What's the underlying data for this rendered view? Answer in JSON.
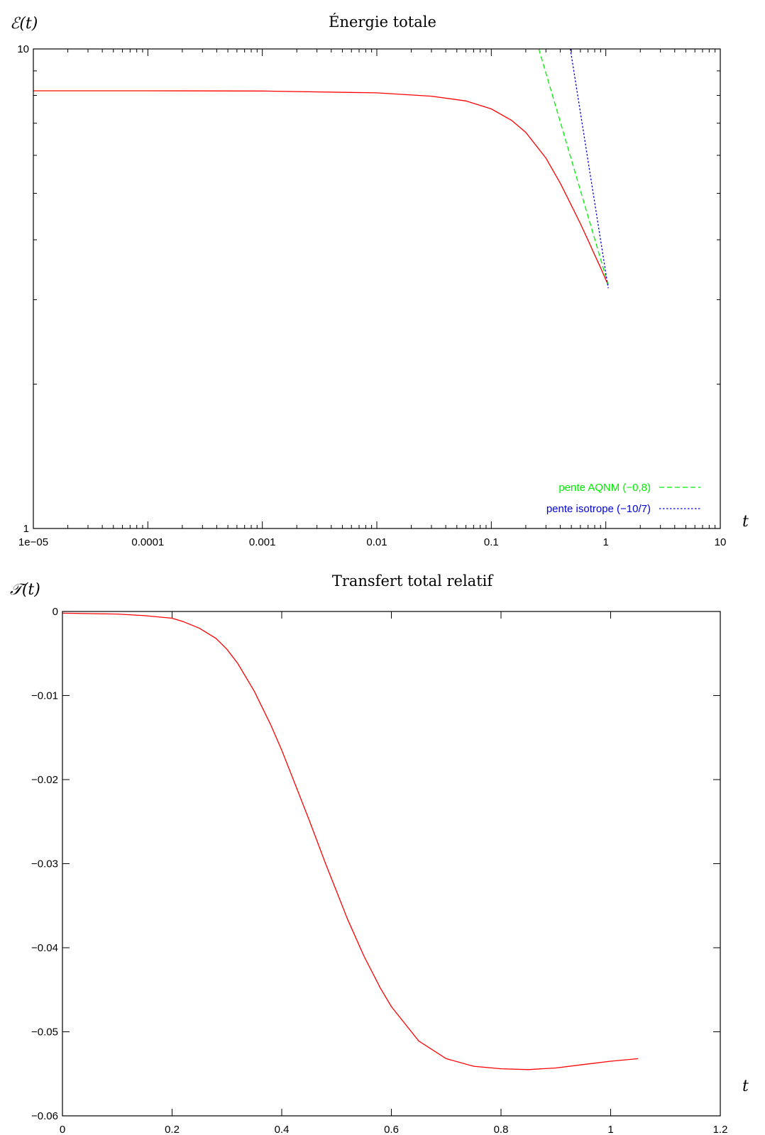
{
  "chart_data": [
    {
      "type": "line",
      "title": "Énergie totale",
      "ylabel": "ℰ(t)",
      "xlabel": "t",
      "xscale": "log",
      "yscale": "log",
      "xlim": [
        1e-05,
        10
      ],
      "ylim": [
        1,
        10
      ],
      "x_ticks": [
        1e-05,
        0.0001,
        0.001,
        0.01,
        0.1,
        1,
        10
      ],
      "x_tick_labels": [
        "1e−05",
        "0.0001",
        "0.001",
        "0.01",
        "0.1",
        "1",
        "10"
      ],
      "y_ticks": [
        1,
        10
      ],
      "y_tick_labels": [
        "1",
        "10"
      ],
      "grid": false,
      "legend_position": "bottom-right",
      "series": [
        {
          "color": "#ff0000",
          "style": "solid",
          "x": [
            1e-05,
            0.0001,
            0.001,
            0.01,
            0.03,
            0.06,
            0.1,
            0.15,
            0.2,
            0.3,
            0.4,
            0.5,
            0.6,
            0.7,
            0.8,
            0.9,
            1.0,
            1.05
          ],
          "y": [
            8.18,
            8.18,
            8.17,
            8.1,
            7.97,
            7.79,
            7.5,
            7.1,
            6.7,
            5.92,
            5.25,
            4.72,
            4.32,
            3.99,
            3.72,
            3.5,
            3.3,
            3.22
          ]
        },
        {
          "name": "pente AQNM (−0,8)",
          "color": "#00ee00",
          "style": "dashed",
          "x": [
            0.26,
            1.05
          ],
          "y": [
            10,
            3.22
          ]
        },
        {
          "name": "pente isotrope (−10/7)",
          "color": "#0000dd",
          "style": "dotted",
          "x": [
            0.49,
            1.05
          ],
          "y": [
            10,
            3.17
          ]
        }
      ]
    },
    {
      "type": "line",
      "title": "Transfert total relatif",
      "ylabel": "𝒯(t)",
      "xlabel": "t",
      "xlim": [
        0,
        1.2
      ],
      "ylim": [
        -0.06,
        0
      ],
      "x_ticks": [
        0,
        0.2,
        0.4,
        0.6,
        0.8,
        1,
        1.2
      ],
      "x_tick_labels": [
        "0",
        "0.2",
        "0.4",
        "0.6",
        "0.8",
        "1",
        "1.2"
      ],
      "y_ticks": [
        0,
        -0.01,
        -0.02,
        -0.03,
        -0.04,
        -0.05,
        -0.06
      ],
      "y_tick_labels": [
        "0",
        "−0.01",
        "−0.02",
        "−0.03",
        "−0.04",
        "−0.05",
        "−0.06"
      ],
      "grid": false,
      "series": [
        {
          "color": "#ff0000",
          "style": "solid",
          "x": [
            0,
            0.1,
            0.15,
            0.2,
            0.22,
            0.25,
            0.28,
            0.3,
            0.32,
            0.35,
            0.38,
            0.4,
            0.42,
            0.45,
            0.48,
            0.5,
            0.52,
            0.55,
            0.58,
            0.6,
            0.65,
            0.7,
            0.75,
            0.8,
            0.85,
            0.9,
            0.95,
            1.0,
            1.05
          ],
          "y": [
            -0.0002,
            -0.0003,
            -0.0005,
            -0.0008,
            -0.0012,
            -0.002,
            -0.0032,
            -0.0045,
            -0.0062,
            -0.0095,
            -0.0135,
            -0.0165,
            -0.0198,
            -0.0248,
            -0.03,
            -0.0333,
            -0.0366,
            -0.041,
            -0.0448,
            -0.047,
            -0.0511,
            -0.0532,
            -0.0541,
            -0.0544,
            -0.0545,
            -0.0543,
            -0.0539,
            -0.0535,
            -0.0532
          ]
        }
      ]
    }
  ]
}
